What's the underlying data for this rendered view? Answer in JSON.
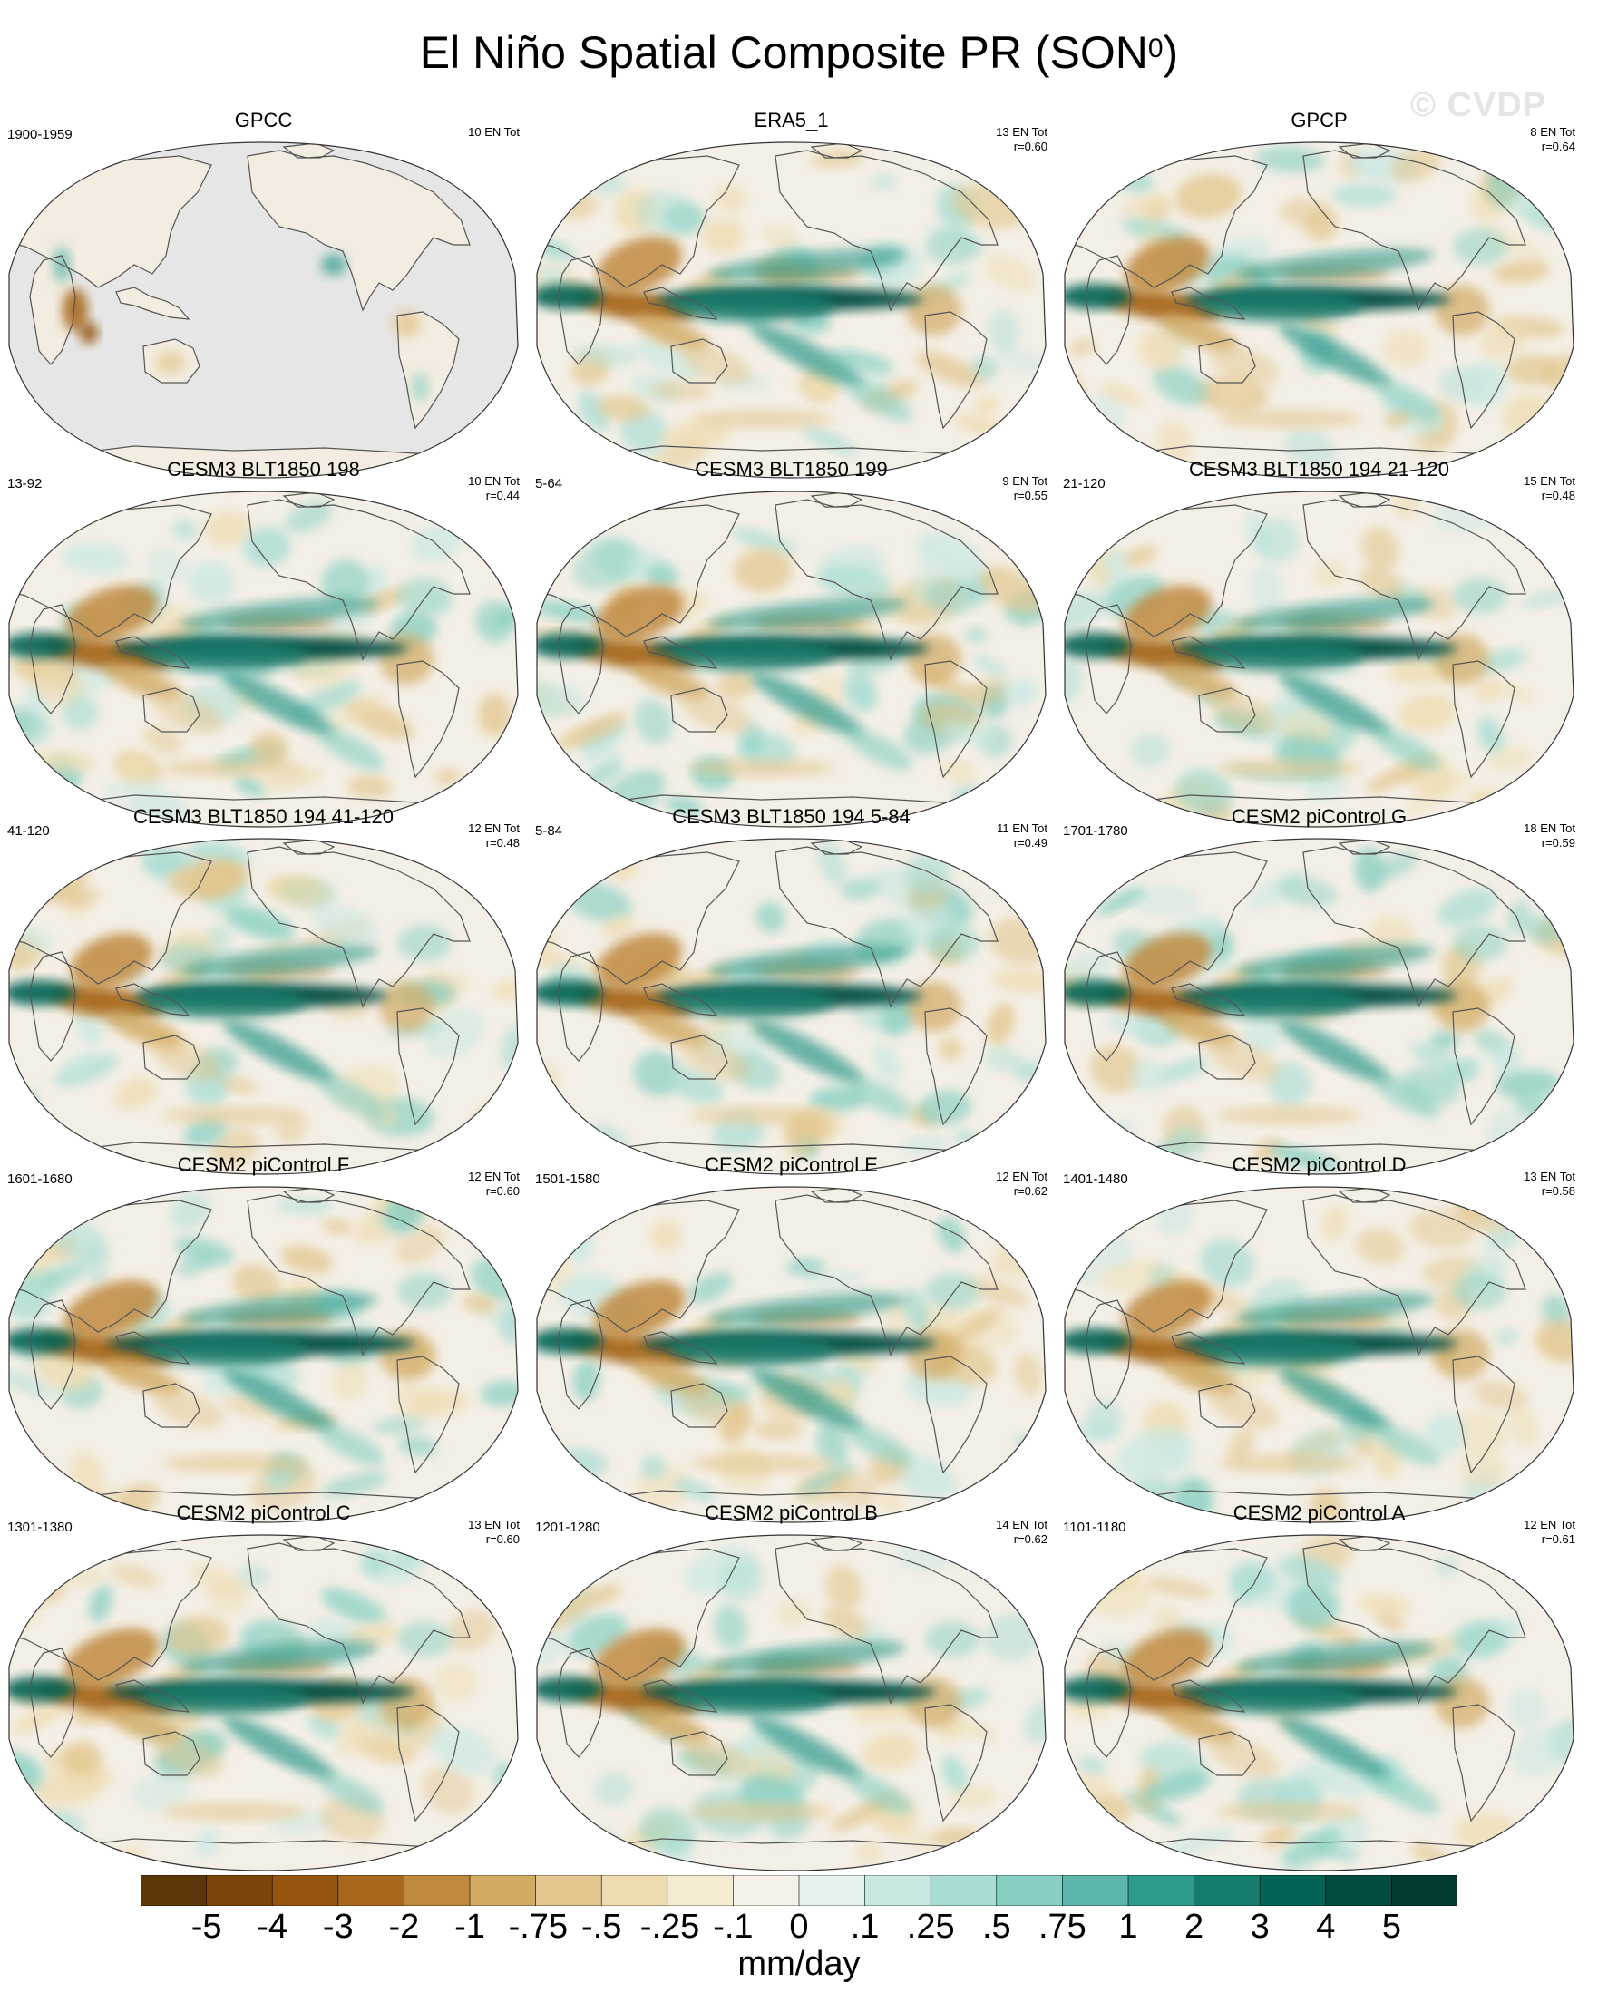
{
  "title": {
    "main": "El Niño Spatial Composite PR (SON",
    "superscript": "0",
    "close": ")"
  },
  "watermark": "© CVDP",
  "panels": [
    {
      "title": "GPCC",
      "period": "1900-1959",
      "count": "10 EN Tot",
      "r": "",
      "land_only": true,
      "strength": 0.35,
      "seed": 1
    },
    {
      "title": "ERA5_1",
      "period": "",
      "count": "13 EN Tot",
      "r": "r=0.60",
      "land_only": false,
      "strength": 0.85,
      "seed": 2
    },
    {
      "title": "GPCP",
      "period": "",
      "count": "8 EN Tot",
      "r": "r=0.64",
      "land_only": false,
      "strength": 0.85,
      "seed": 3
    },
    {
      "title": "CESM3 BLT1850 198",
      "period": "13-92",
      "count": "10 EN Tot",
      "r": "r=0.44",
      "land_only": false,
      "strength": 0.95,
      "seed": 4
    },
    {
      "title": "CESM3 BLT1850 199",
      "period": "5-64",
      "count": "9 EN Tot",
      "r": "r=0.55",
      "land_only": false,
      "strength": 0.9,
      "seed": 5
    },
    {
      "title": "CESM3 BLT1850 194 21-120",
      "period": "21-120",
      "count": "15 EN Tot",
      "r": "r=0.48",
      "land_only": false,
      "strength": 0.9,
      "seed": 6
    },
    {
      "title": "CESM3 BLT1850 194 41-120",
      "period": "41-120",
      "count": "12 EN Tot",
      "r": "r=0.48",
      "land_only": false,
      "strength": 0.8,
      "seed": 7
    },
    {
      "title": "CESM3 BLT1850 194 5-84",
      "period": "5-84",
      "count": "11 EN Tot",
      "r": "r=0.49",
      "land_only": false,
      "strength": 0.85,
      "seed": 8
    },
    {
      "title": "CESM2 piControl G",
      "period": "1701-1780",
      "count": "18 EN Tot",
      "r": "r=0.59",
      "land_only": false,
      "strength": 0.9,
      "seed": 9
    },
    {
      "title": "CESM2 piControl F",
      "period": "1601-1680",
      "count": "12 EN Tot",
      "r": "r=0.60",
      "land_only": false,
      "strength": 1.0,
      "seed": 10
    },
    {
      "title": "CESM2 piControl E",
      "period": "1501-1580",
      "count": "12 EN Tot",
      "r": "r=0.62",
      "land_only": false,
      "strength": 0.95,
      "seed": 11
    },
    {
      "title": "CESM2 piControl D",
      "period": "1401-1480",
      "count": "13 EN Tot",
      "r": "r=0.58",
      "land_only": false,
      "strength": 0.9,
      "seed": 12
    },
    {
      "title": "CESM2 piControl C",
      "period": "1301-1380",
      "count": "13 EN Tot",
      "r": "r=0.60",
      "land_only": false,
      "strength": 1.0,
      "seed": 13
    },
    {
      "title": "CESM2 piControl B",
      "period": "1201-1280",
      "count": "14 EN Tot",
      "r": "r=0.62",
      "land_only": false,
      "strength": 0.95,
      "seed": 14
    },
    {
      "title": "CESM2 piControl A",
      "period": "1101-1180",
      "count": "12 EN Tot",
      "r": "r=0.61",
      "land_only": false,
      "strength": 0.9,
      "seed": 15
    }
  ],
  "colorbar": {
    "colors": [
      "#5c3608",
      "#7a4609",
      "#955510",
      "#a8691e",
      "#c08a3e",
      "#d2aa62",
      "#e2c68d",
      "#eedcb0",
      "#f5ebd2",
      "#f6f1e8",
      "#e6f2ef",
      "#c8e8e2",
      "#a9ddd4",
      "#86cfc2",
      "#5cb6a9",
      "#2e9a8b",
      "#167d6d",
      "#046353",
      "#024d40",
      "#013a30"
    ],
    "labels": [
      "-5",
      "-4",
      "-3",
      "-2",
      "-1",
      "-.75",
      "-.5",
      "-.25",
      "-.1",
      "0",
      ".1",
      ".25",
      ".5",
      ".75",
      "1",
      "2",
      "3",
      "4",
      "5"
    ],
    "units": "mm/day"
  },
  "map_colors": {
    "missing": "#e6e6e6",
    "coast": "#555555",
    "outline": "#333333"
  }
}
